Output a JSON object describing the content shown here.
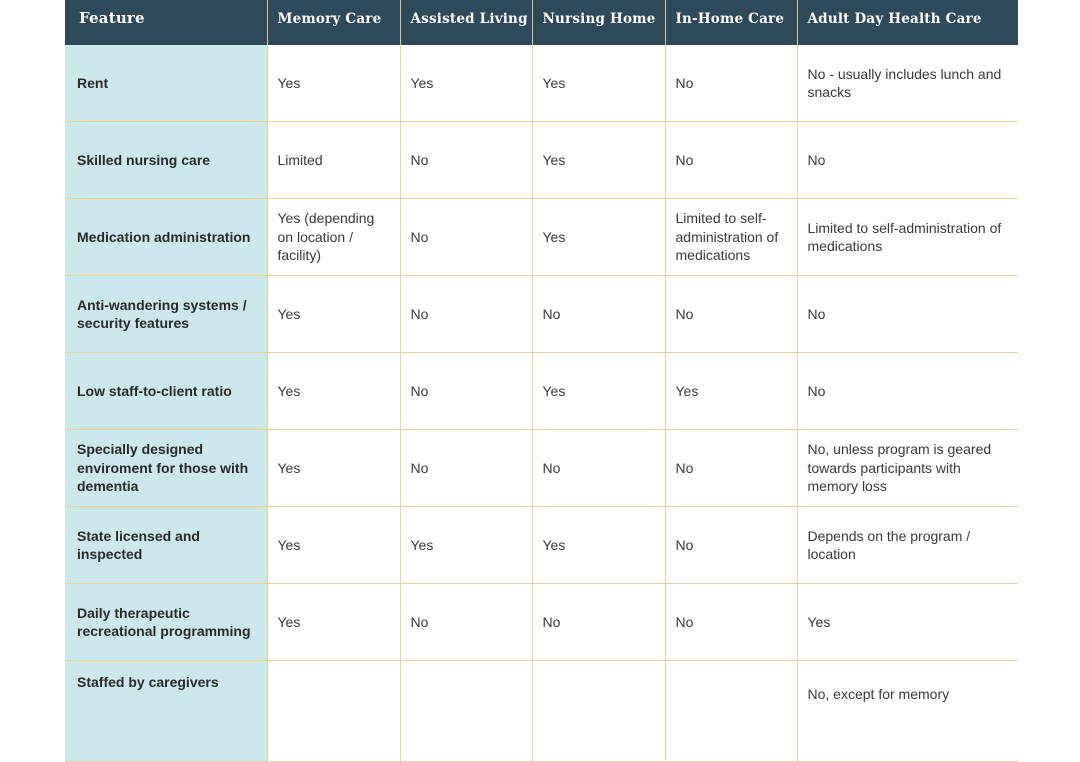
{
  "columns": [
    "Feature",
    "Memory Care",
    "Assisted Living",
    "Nursing Home",
    "In-Home Care",
    "Adult Day Health Care"
  ],
  "rows": [
    {
      "feature": "Rent",
      "values": [
        "Yes",
        "Yes",
        "Yes",
        "No",
        "No - usually includes lunch and snacks"
      ]
    },
    {
      "feature": "Skilled nursing care",
      "values": [
        "Limited",
        "No",
        "Yes",
        "No",
        "No"
      ]
    },
    {
      "feature": "Medication administration",
      "values": [
        "Yes (depending on location / facility)",
        "No",
        "Yes",
        "Limited to self-administration of medications",
        "Limited to self-administration of medications"
      ]
    },
    {
      "feature": "Anti-wandering systems / security features",
      "values": [
        "Yes",
        "No",
        "No",
        "No",
        "No"
      ]
    },
    {
      "feature": "Low staff-to-client ratio",
      "values": [
        "Yes",
        "No",
        "Yes",
        "Yes",
        "No"
      ]
    },
    {
      "feature": "Specially designed enviroment for those with dementia",
      "values": [
        "Yes",
        "No",
        "No",
        "No",
        "No, unless program is geared towards participants with memory loss"
      ]
    },
    {
      "feature": "State licensed and inspected",
      "values": [
        "Yes",
        "Yes",
        "Yes",
        "No",
        "Depends on the program / location"
      ]
    },
    {
      "feature": "Daily therapeutic recreational programming",
      "values": [
        "Yes",
        "No",
        "No",
        "No",
        "Yes"
      ]
    },
    {
      "feature": "Staffed by caregivers",
      "values": [
        "",
        "",
        "",
        "",
        "No, except for memory"
      ]
    }
  ]
}
